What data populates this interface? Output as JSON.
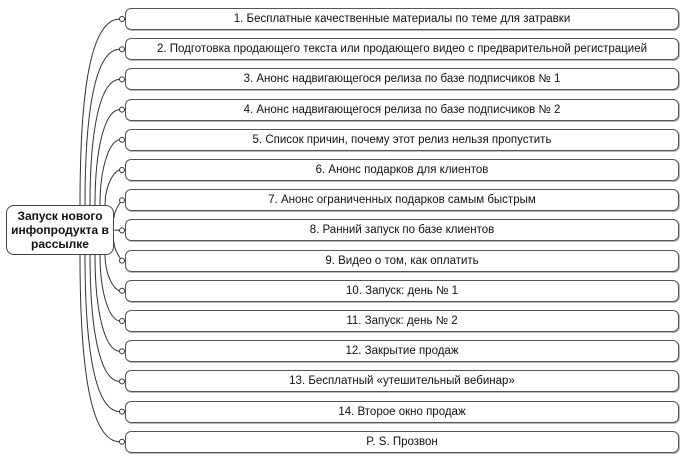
{
  "center": {
    "label": "Запуск нового инфопродукта в рассылке"
  },
  "nodes": [
    "1. Бесплатные качественные материалы по теме для затравки",
    "2. Подготовка продающего текста или продающего видео с предварительной регистрацией",
    "3. Анонс надвигающегося релиза по базе подписчиков № 1",
    "4. Анонс надвигающегося релиза по базе подписчиков № 2",
    "5. Список причин, почему этот релиз нельзя пропустить",
    "6. Анонс подарков для клиентов",
    "7. Анонс ограниченных подарков самым быстрым",
    "8. Ранний запуск по базе клиентов",
    "9. Видео о том, как оплатить",
    "10. Запуск: день № 1",
    "11. Запуск: день № 2",
    "12. Закрытие продаж",
    "13. Бесплатный «утешительный вебинар»",
    "14. Второе окно продаж",
    "P. S. Прозвон"
  ],
  "colors": {
    "line": "#333333",
    "border": "#555555"
  }
}
